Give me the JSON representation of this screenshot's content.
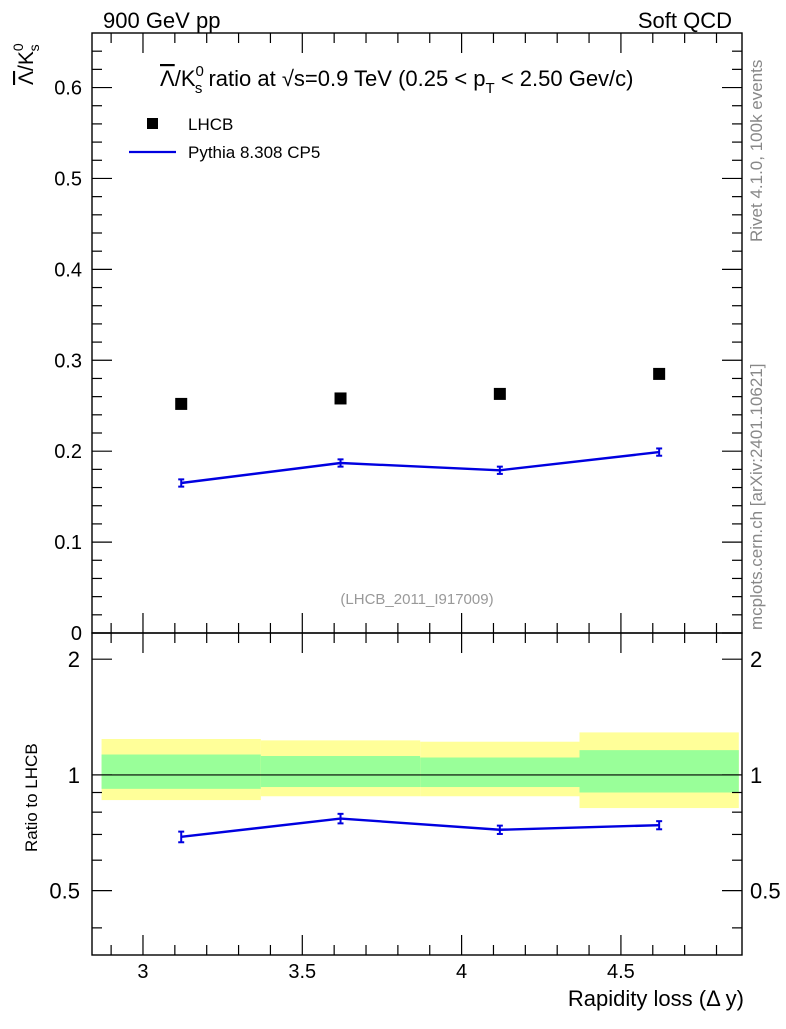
{
  "header": {
    "left": "900 GeV pp",
    "right": "Soft QCD"
  },
  "side_labels": {
    "rivet": "Rivet 4.1.0,  100k events",
    "mcplots": "mcplots.cern.ch [arXiv:2401.10621]"
  },
  "plot_title": {
    "lead": "Λ",
    "part1": "/K",
    "sup": "0",
    "sub": "s",
    "part2": " ratio at ",
    "sqrt": "√",
    "part3": "s=0.9 TeV (0.25 < p",
    "sub_t": "T",
    "part4": " < 2.50 Gev/c)"
  },
  "y_axis_top": {
    "lead": "Λ",
    "part1": "/K",
    "sup": "0",
    "sub": "s"
  },
  "analysis_id": "(LHCB_2011_I917009)",
  "legend": {
    "data_label": "LHCB",
    "mc_label": "Pythia 8.308 CP5"
  },
  "colors": {
    "data": "#000000",
    "mc": "#0000e0",
    "band_outer": "#ffff99",
    "band_inner": "#99ff99"
  },
  "chart_data": [
    {
      "type": "scatter",
      "panel": "main",
      "xlim": [
        2.84,
        4.88
      ],
      "ylim": [
        0,
        0.66
      ],
      "ylabel": "Λ/K0s",
      "yticks": [
        0,
        0.1,
        0.2,
        0.3,
        0.4,
        0.5,
        0.6
      ],
      "ytick_labels": [
        "0",
        "0.1",
        "0.2",
        "0.3",
        "0.4",
        "0.5",
        "0.6"
      ],
      "series": [
        {
          "name": "LHCB",
          "style": "markers",
          "x": [
            3.12,
            3.62,
            4.12,
            4.62
          ],
          "y": [
            0.252,
            0.258,
            0.263,
            0.285
          ]
        },
        {
          "name": "Pythia 8.308 CP5",
          "style": "line",
          "x": [
            3.12,
            3.62,
            4.12,
            4.62
          ],
          "y": [
            0.165,
            0.187,
            0.179,
            0.199
          ],
          "yerr": [
            0.004,
            0.004,
            0.004,
            0.004
          ]
        }
      ]
    },
    {
      "type": "line",
      "panel": "ratio",
      "xlim": [
        2.84,
        4.88
      ],
      "ylim": [
        0.34,
        2.34
      ],
      "ylabel": "Ratio to LHCB",
      "xlabel": "Rapidity loss (Δ y)",
      "xticks": [
        3,
        3.5,
        4,
        4.5
      ],
      "xtick_labels": [
        "3",
        "3.5",
        "4",
        "4.5"
      ],
      "yticks": [
        0.5,
        1,
        2
      ],
      "ytick_labels": [
        "0.5",
        "1",
        "2"
      ],
      "bins": [
        {
          "x_low": 2.87,
          "x_high": 3.37,
          "outer": [
            0.86,
            1.24
          ],
          "inner": [
            0.92,
            1.13
          ]
        },
        {
          "x_low": 3.37,
          "x_high": 3.87,
          "outer": [
            0.88,
            1.23
          ],
          "inner": [
            0.93,
            1.12
          ]
        },
        {
          "x_low": 3.87,
          "x_high": 4.37,
          "outer": [
            0.88,
            1.22
          ],
          "inner": [
            0.93,
            1.11
          ]
        },
        {
          "x_low": 4.37,
          "x_high": 4.87,
          "outer": [
            0.82,
            1.29
          ],
          "inner": [
            0.9,
            1.16
          ]
        }
      ],
      "series": [
        {
          "name": "Pythia 8.308 CP5",
          "x": [
            3.12,
            3.62,
            4.12,
            4.62
          ],
          "y": [
            0.69,
            0.77,
            0.72,
            0.74
          ],
          "yerr": [
            0.022,
            0.022,
            0.018,
            0.018
          ]
        }
      ],
      "reference_line": 1
    }
  ]
}
